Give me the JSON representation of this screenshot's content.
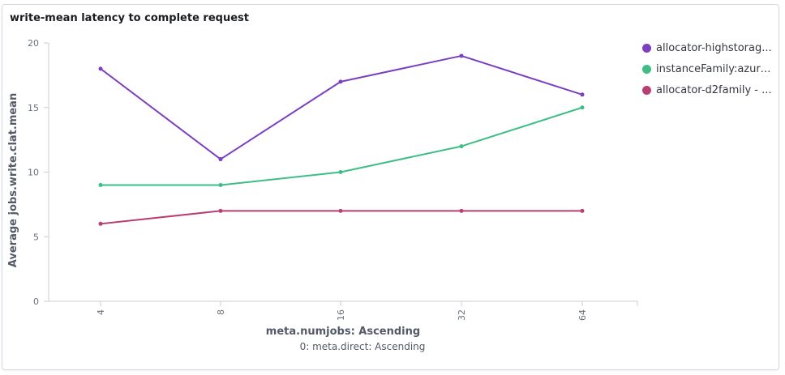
{
  "panel": {
    "title": "write-mean latency to complete request"
  },
  "chart_data": {
    "type": "line",
    "title": "write-mean latency to complete request",
    "xlabel": "meta.numjobs: Ascending",
    "xlabel_secondary": "0: meta.direct: Ascending",
    "ylabel": "Average jobs.write.clat.mean",
    "categories": [
      "4",
      "8",
      "16",
      "32",
      "64"
    ],
    "ylim": [
      0,
      20
    ],
    "yticks": [
      "0",
      "5",
      "10",
      "15",
      "20"
    ],
    "grid": false,
    "legend_position": "right",
    "series": [
      {
        "name": "allocator-highstorag...",
        "color": "#7b3fbf",
        "values": [
          18,
          11,
          17,
          19,
          16
        ]
      },
      {
        "name": "instanceFamily:azure...",
        "color": "#3ebd84",
        "values": [
          9,
          9,
          10,
          12,
          15
        ]
      },
      {
        "name": "allocator-d2family - ...",
        "color": "#b83f75",
        "values": [
          6,
          7,
          7,
          7,
          7
        ]
      }
    ]
  }
}
